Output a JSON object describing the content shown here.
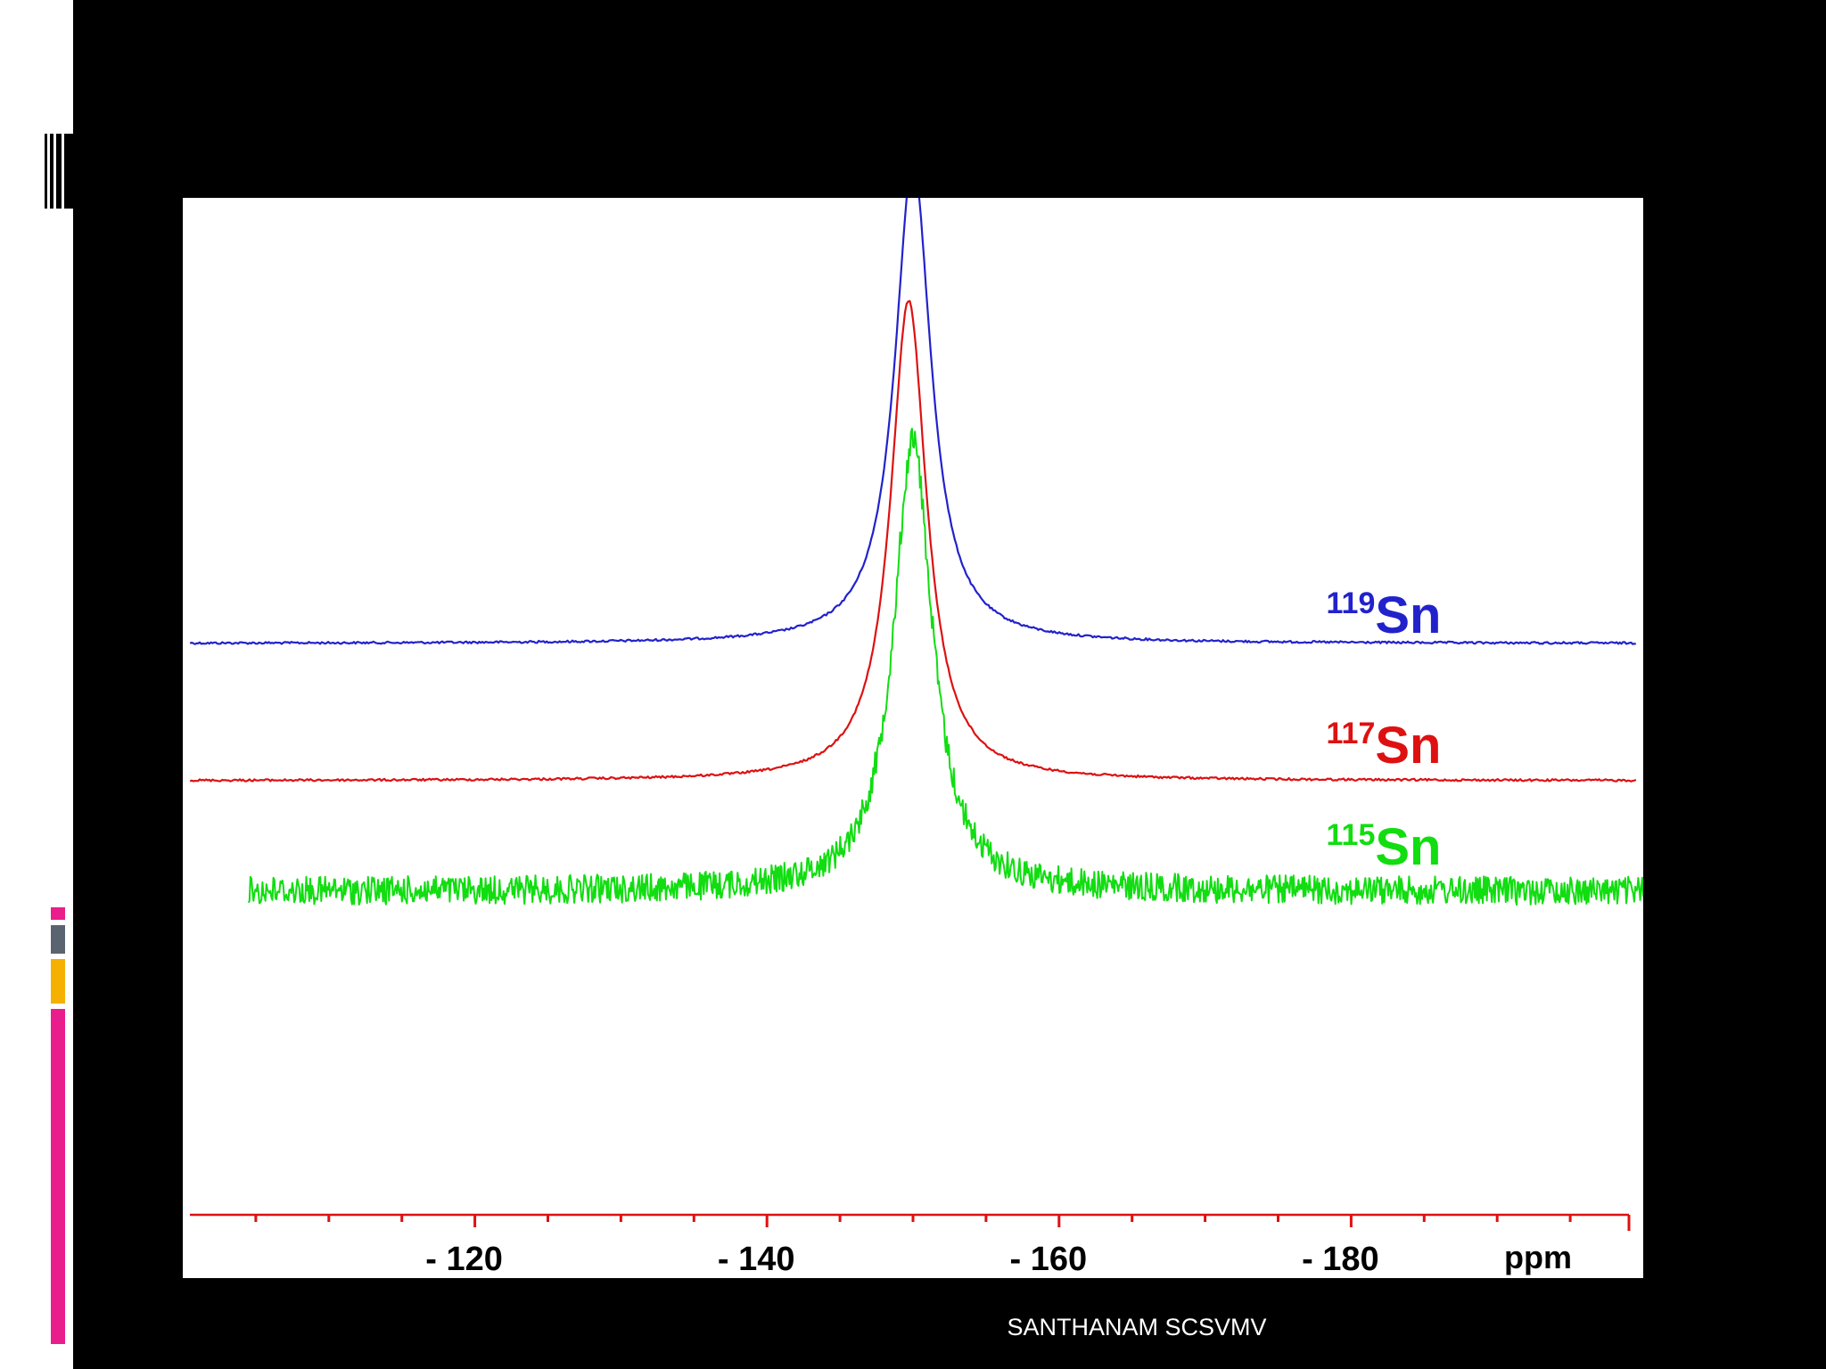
{
  "slide": {
    "background": "#000000",
    "accents": [
      "#e91e8c",
      "#5a6470",
      "#f5b000",
      "#e91e8c"
    ]
  },
  "footer": {
    "text": "SANTHANAM SCSVMV"
  },
  "chart_data": {
    "type": "line",
    "title": "",
    "xlabel": "ppm",
    "ylabel": "",
    "xlim": [
      -100,
      -200
    ],
    "xticks": [
      -120,
      -140,
      -160,
      -180
    ],
    "xtick_labels": [
      "- 120",
      "- 140",
      "- 160",
      "- 180"
    ],
    "grid": false,
    "legend": "inline labels, right side",
    "series": [
      {
        "name": "119Sn",
        "mass": "119",
        "element": "Sn",
        "color": "#2222cc",
        "peak_ppm": -150.0,
        "relative_height": 1.0,
        "baseline_offset": 2.0,
        "noise": "low",
        "x_range": [
          -100.5,
          -199.5
        ]
      },
      {
        "name": "117Sn",
        "mass": "117",
        "element": "Sn",
        "color": "#dd1111",
        "peak_ppm": -149.7,
        "relative_height": 1.0,
        "baseline_offset": 1.0,
        "noise": "low",
        "x_range": [
          -100.5,
          -199.5
        ]
      },
      {
        "name": "115Sn",
        "mass": "115",
        "element": "Sn",
        "color": "#11dd11",
        "peak_ppm": -150.0,
        "relative_height": 1.0,
        "baseline_offset": 0.0,
        "noise": "high",
        "x_range": [
          -104.5,
          -200
        ]
      }
    ]
  }
}
